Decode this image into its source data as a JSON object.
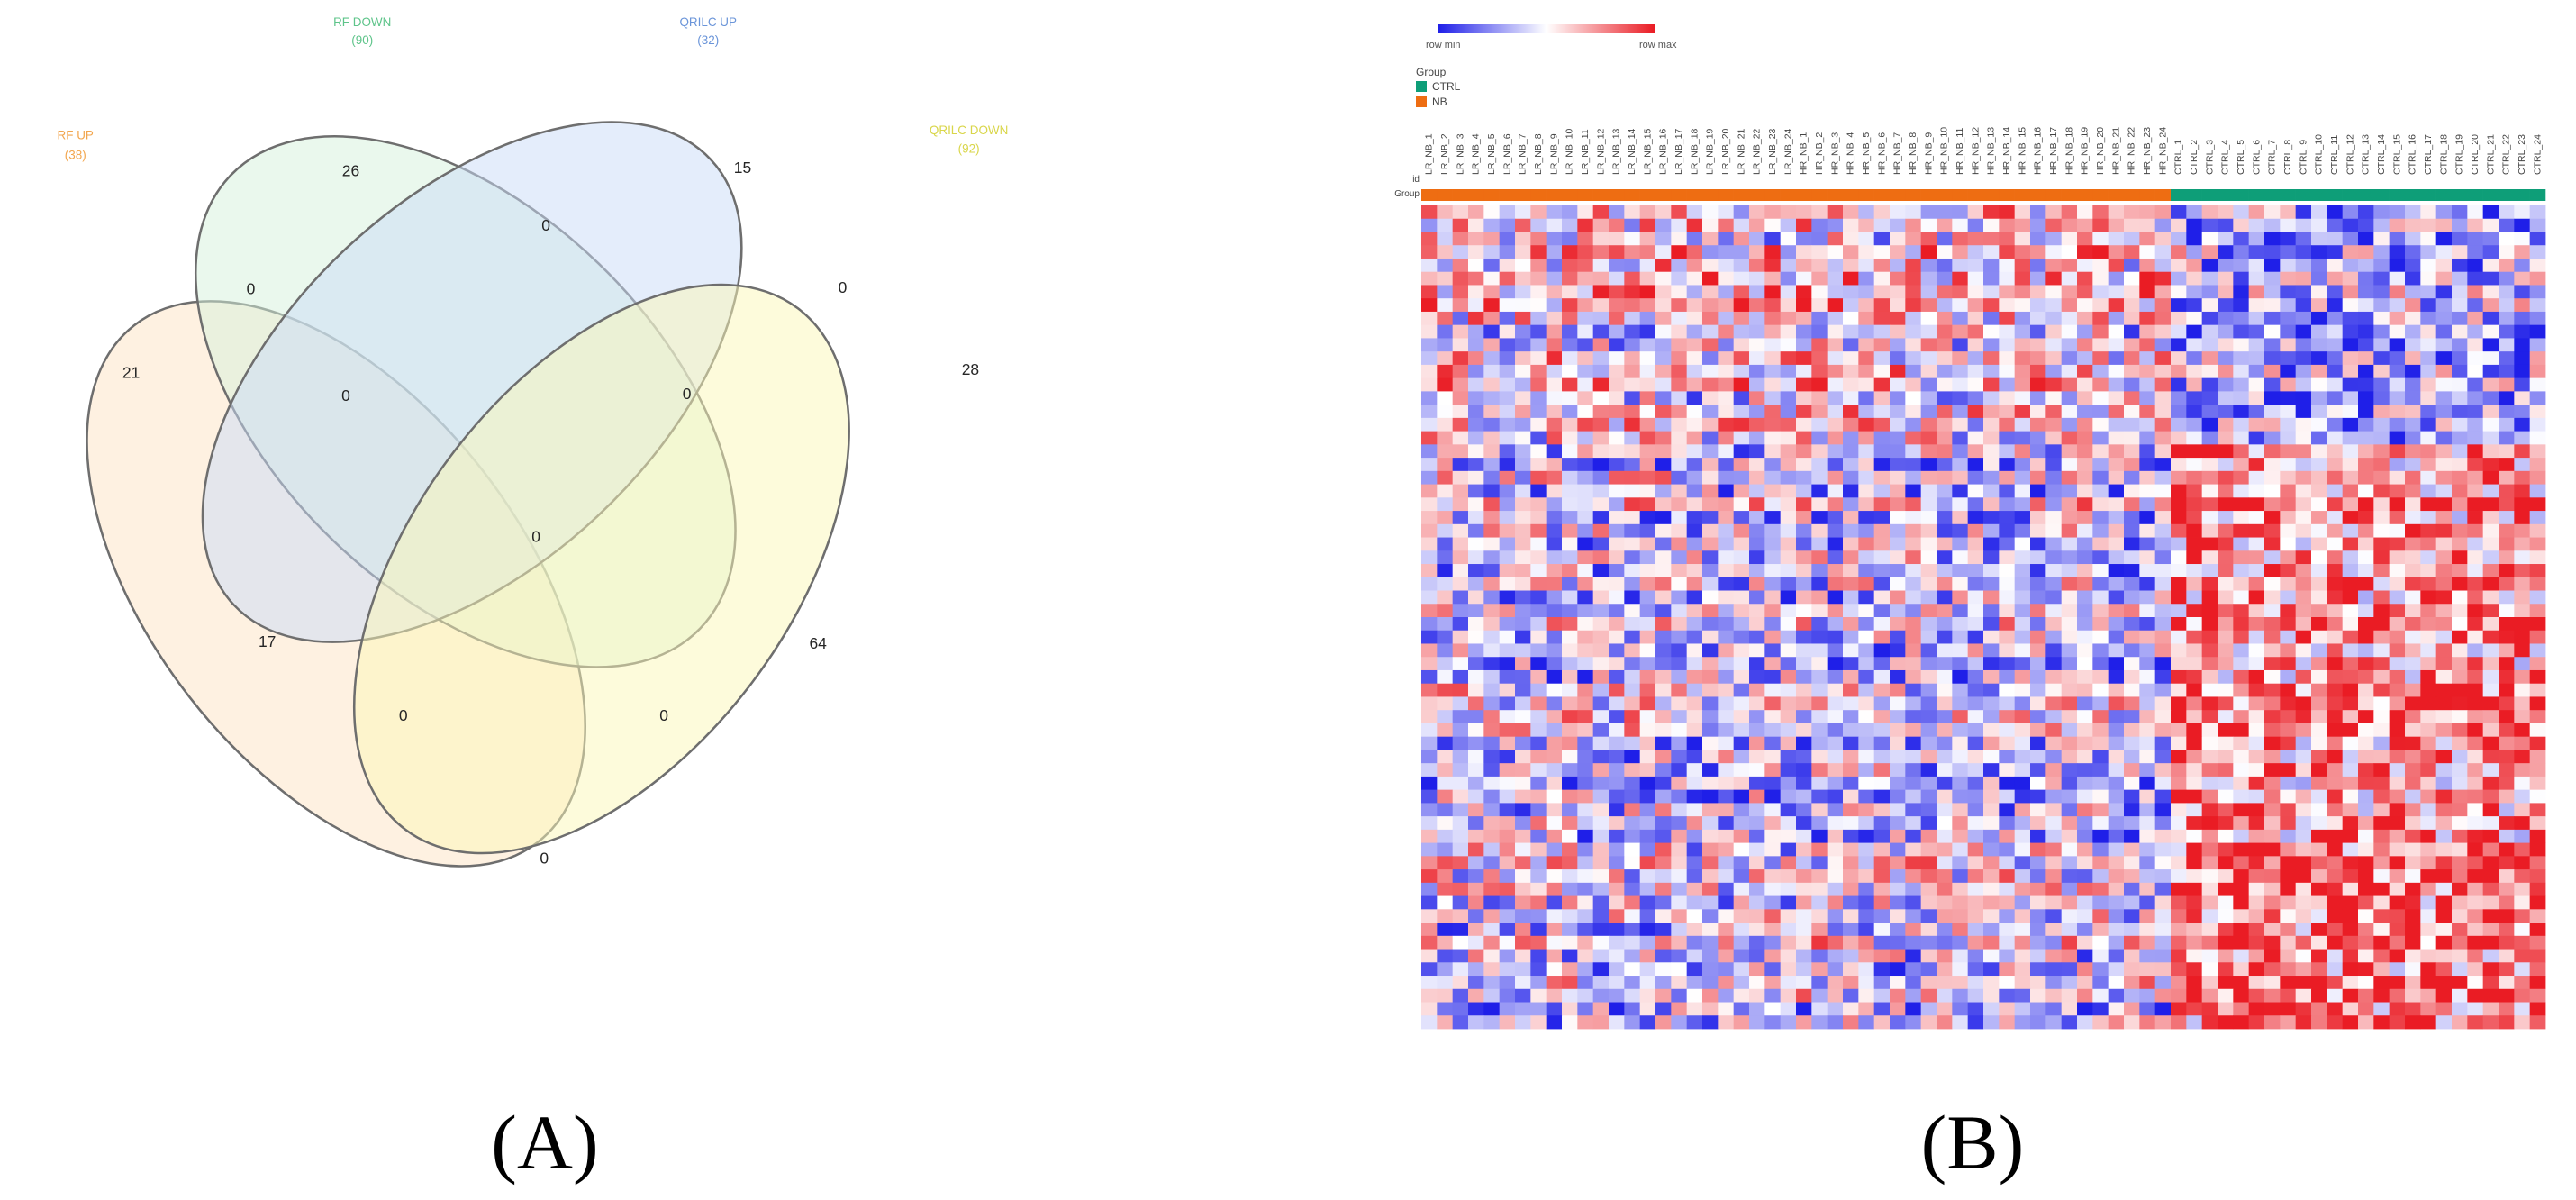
{
  "panels": {
    "a_label": "(A)",
    "b_label": "(B)"
  },
  "chart_data": [
    {
      "type": "venn",
      "sets": [
        {
          "name": "RF UP",
          "size_label": "(38)",
          "color": "#f2a64e",
          "fill": "#fde4c4"
        },
        {
          "name": "RF DOWN",
          "size_label": "(90)",
          "color": "#5ec48a",
          "fill": "#d6f1dc"
        },
        {
          "name": "QRILC UP",
          "size_label": "(32)",
          "color": "#6b95d9",
          "fill": "#c9dbf7"
        },
        {
          "name": "QRILC DOWN",
          "size_label": "(92)",
          "color": "#d9d64a",
          "fill": "#fbf7b8"
        }
      ],
      "regions": [
        {
          "sets": [
            "RF DOWN"
          ],
          "value": 26
        },
        {
          "sets": [
            "QRILC UP"
          ],
          "value": 15
        },
        {
          "sets": [
            "RF DOWN",
            "QRILC UP"
          ],
          "value": 0
        },
        {
          "sets": [
            "RF UP",
            "RF DOWN"
          ],
          "value": 0
        },
        {
          "sets": [
            "QRILC UP",
            "QRILC DOWN"
          ],
          "value": 0
        },
        {
          "sets": [
            "RF UP"
          ],
          "value": 21
        },
        {
          "sets": [
            "QRILC DOWN"
          ],
          "value": 28
        },
        {
          "sets": [
            "RF UP",
            "RF DOWN",
            "QRILC UP"
          ],
          "value": 0
        },
        {
          "sets": [
            "RF DOWN",
            "QRILC UP",
            "QRILC DOWN"
          ],
          "value": 0
        },
        {
          "sets": [
            "RF UP",
            "RF DOWN",
            "QRILC UP",
            "QRILC DOWN"
          ],
          "value": 0
        },
        {
          "sets": [
            "RF UP",
            "QRILC UP"
          ],
          "value": 17
        },
        {
          "sets": [
            "RF DOWN",
            "QRILC DOWN"
          ],
          "value": 64
        },
        {
          "sets": [
            "RF UP",
            "QRILC UP",
            "QRILC DOWN"
          ],
          "value": 0
        },
        {
          "sets": [
            "RF UP",
            "RF DOWN",
            "QRILC DOWN"
          ],
          "value": 0
        },
        {
          "sets": [
            "RF UP",
            "QRILC DOWN"
          ],
          "value": 0
        }
      ]
    },
    {
      "type": "heatmap",
      "legend": {
        "min_label": "row min",
        "max_label": "row max",
        "min_color": "#1f1fe8",
        "mid_color": "#ffffff",
        "max_color": "#ea1c24"
      },
      "group_legend": {
        "title": "Group",
        "items": [
          {
            "label": "CTRL",
            "color": "#0e9e78"
          },
          {
            "label": "NB",
            "color": "#ee6d12"
          }
        ]
      },
      "row_labels": [
        "id",
        "Group"
      ],
      "columns": [
        "LR_NB_1",
        "LR_NB_2",
        "LR_NB_3",
        "LR_NB_4",
        "LR_NB_5",
        "LR_NB_6",
        "LR_NB_7",
        "LR_NB_8",
        "LR_NB_9",
        "LR_NB_10",
        "LR_NB_11",
        "LR_NB_12",
        "LR_NB_13",
        "LR_NB_14",
        "LR_NB_15",
        "LR_NB_16",
        "LR_NB_17",
        "LR_NB_18",
        "LR_NB_19",
        "LR_NB_20",
        "LR_NB_21",
        "LR_NB_22",
        "LR_NB_23",
        "LR_NB_24",
        "HR_NB_1",
        "HR_NB_2",
        "HR_NB_3",
        "HR_NB_4",
        "HR_NB_5",
        "HR_NB_6",
        "HR_NB_7",
        "HR_NB_8",
        "HR_NB_9",
        "HR_NB_10",
        "HR_NB_11",
        "HR_NB_12",
        "HR_NB_13",
        "HR_NB_14",
        "HR_NB_15",
        "HR_NB_16",
        "HR_NB_17",
        "HR_NB_18",
        "HR_NB_19",
        "HR_NB_20",
        "HR_NB_21",
        "HR_NB_22",
        "HR_NB_23",
        "HR_NB_24",
        "CTRL_1",
        "CTRL_2",
        "CTRL_3",
        "CTRL_4",
        "CTRL_5",
        "CTRL_6",
        "CTRL_7",
        "CTRL_8",
        "CTRL_9",
        "CTRL_10",
        "CTRL_11",
        "CTRL_12",
        "CTRL_13",
        "CTRL_14",
        "CTRL_15",
        "CTRL_16",
        "CTRL_17",
        "CTRL_18",
        "CTRL_19",
        "CTRL_20",
        "CTRL_21",
        "CTRL_22",
        "CTRL_23",
        "CTRL_24"
      ],
      "n_rows": 62,
      "value_range": [
        -1,
        1
      ]
    }
  ]
}
